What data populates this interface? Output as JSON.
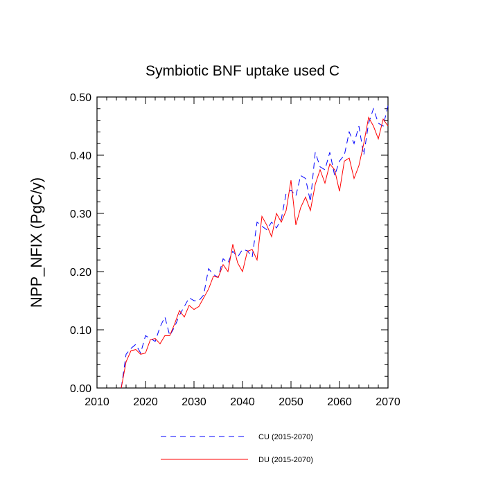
{
  "chart_data": {
    "type": "line",
    "title": "Symbiotic BNF uptake used C",
    "xlabel": "",
    "ylabel": "NPP_NFIX  (PgC/y)",
    "xlim": [
      2010,
      2070
    ],
    "ylim": [
      0,
      0.5
    ],
    "x_ticks": [
      "2010",
      "2020",
      "2030",
      "2040",
      "2050",
      "2060",
      "2070"
    ],
    "y_ticks": [
      "0.00",
      "0.10",
      "0.20",
      "0.30",
      "0.40",
      "0.50"
    ],
    "x": [
      2015,
      2016,
      2017,
      2018,
      2019,
      2020,
      2021,
      2022,
      2023,
      2024,
      2025,
      2026,
      2027,
      2028,
      2029,
      2030,
      2031,
      2032,
      2033,
      2034,
      2035,
      2036,
      2037,
      2038,
      2039,
      2040,
      2041,
      2042,
      2043,
      2044,
      2045,
      2046,
      2047,
      2048,
      2049,
      2050,
      2051,
      2052,
      2053,
      2054,
      2055,
      2056,
      2057,
      2058,
      2059,
      2060,
      2061,
      2062,
      2063,
      2064,
      2065,
      2066,
      2067,
      2068,
      2069,
      2070
    ],
    "series": [
      {
        "name": "CU (2015-2070)",
        "color": "#0000ff",
        "style": "dashed",
        "values": [
          0.0,
          0.058,
          0.068,
          0.075,
          0.06,
          0.09,
          0.085,
          0.08,
          0.105,
          0.122,
          0.09,
          0.105,
          0.125,
          0.14,
          0.155,
          0.15,
          0.15,
          0.16,
          0.205,
          0.195,
          0.19,
          0.222,
          0.215,
          0.235,
          0.225,
          0.238,
          0.236,
          0.225,
          0.285,
          0.278,
          0.272,
          0.285,
          0.275,
          0.29,
          0.335,
          0.34,
          0.33,
          0.365,
          0.36,
          0.32,
          0.405,
          0.38,
          0.375,
          0.405,
          0.365,
          0.39,
          0.4,
          0.44,
          0.42,
          0.45,
          0.4,
          0.455,
          0.48,
          0.455,
          0.45,
          0.485
        ]
      },
      {
        "name": "DU (2015-2070)",
        "color": "#ff0000",
        "style": "solid",
        "values": [
          0.0,
          0.045,
          0.064,
          0.066,
          0.058,
          0.06,
          0.083,
          0.085,
          0.076,
          0.09,
          0.09,
          0.11,
          0.133,
          0.122,
          0.142,
          0.135,
          0.14,
          0.155,
          0.17,
          0.192,
          0.19,
          0.212,
          0.2,
          0.247,
          0.215,
          0.2,
          0.235,
          0.238,
          0.22,
          0.295,
          0.28,
          0.26,
          0.3,
          0.285,
          0.305,
          0.357,
          0.28,
          0.31,
          0.328,
          0.305,
          0.35,
          0.375,
          0.352,
          0.385,
          0.375,
          0.338,
          0.39,
          0.395,
          0.36,
          0.382,
          0.42,
          0.465,
          0.45,
          0.428,
          0.462,
          0.45
        ]
      }
    ],
    "legend_position": "bottom-center"
  }
}
